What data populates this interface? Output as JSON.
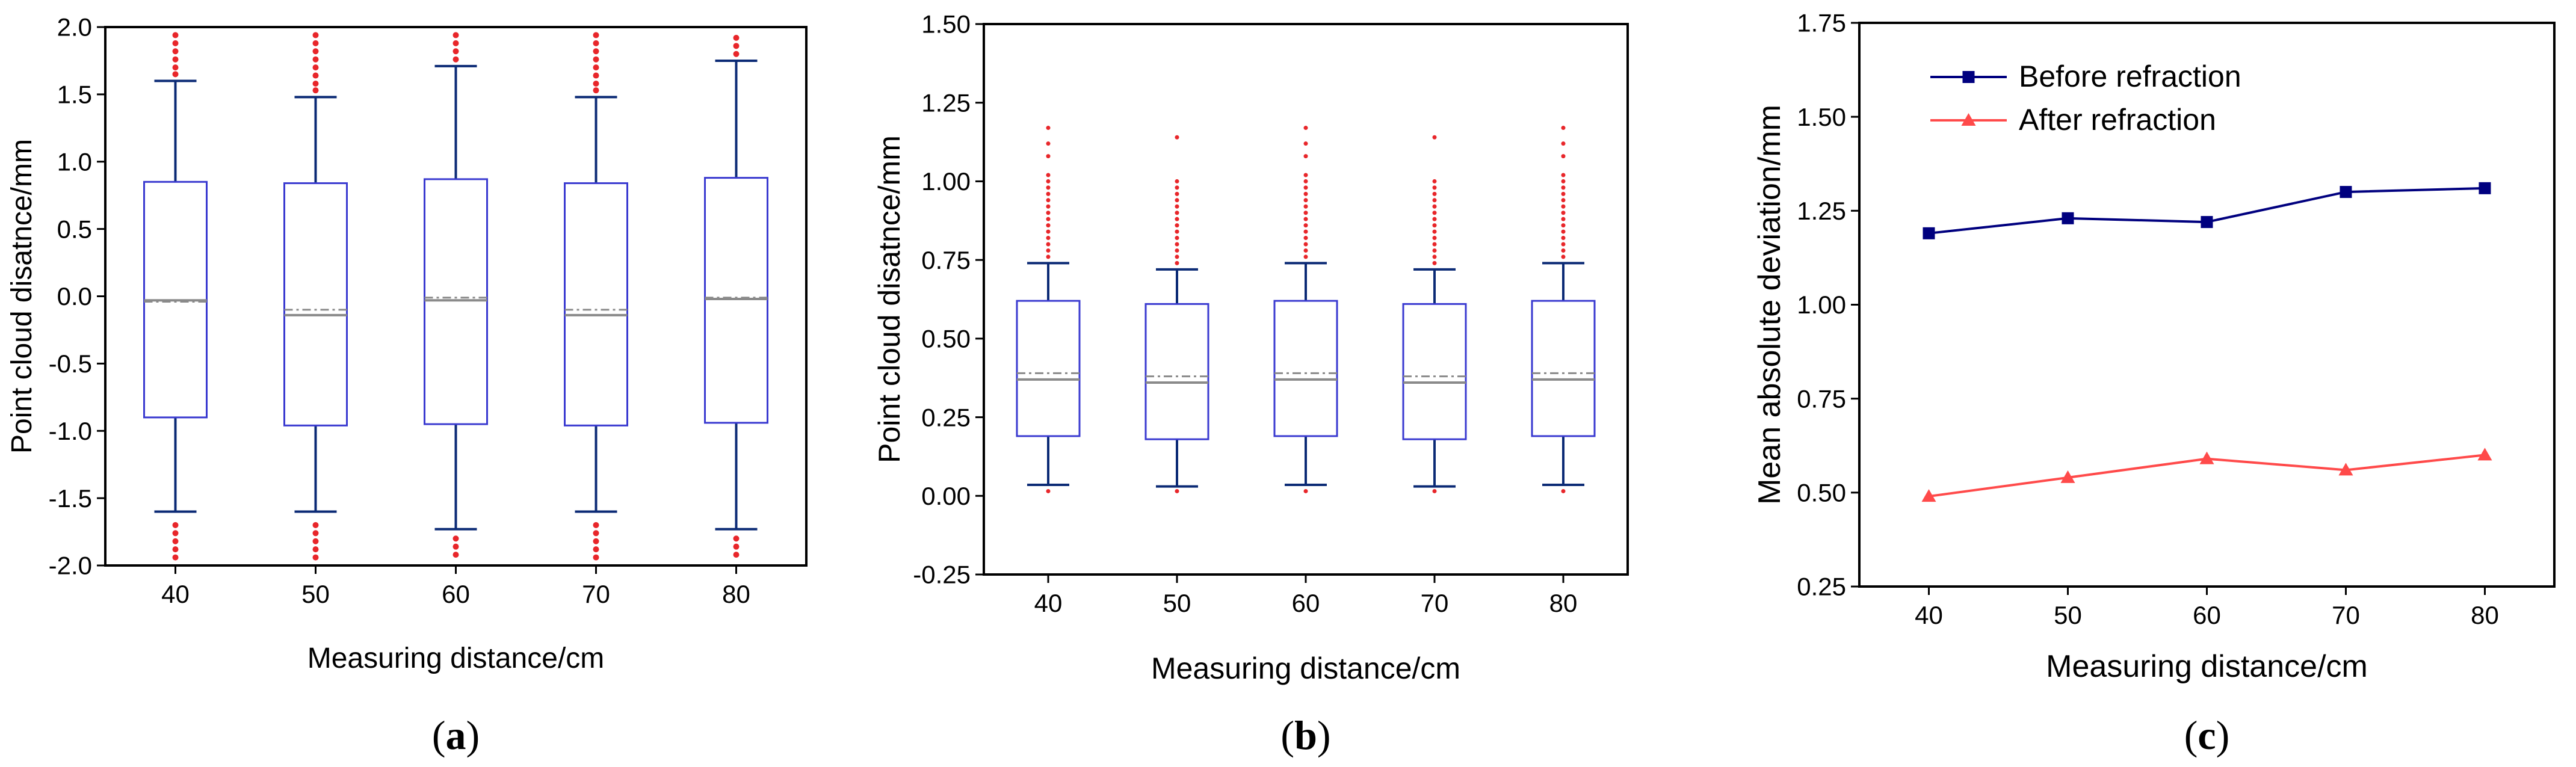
{
  "colors": {
    "box": "#3a3ad0",
    "whisker": "#0b2a75",
    "outlier": "#e8262a",
    "median": "#8a8a8a",
    "mean": "#8a8a8a",
    "before": "#00007f",
    "after": "#ff4a4a",
    "axis": "#000000"
  },
  "chart_data": [
    {
      "id": "a",
      "type": "box",
      "caption_open": "(",
      "caption_letter": "a",
      "caption_close": ")",
      "xlabel": "Measuring distance/cm",
      "ylabel": "Point cloud disatnce/mm",
      "categories": [
        "40",
        "50",
        "60",
        "70",
        "80"
      ],
      "ylim": [
        -2.0,
        2.0
      ],
      "yticks": [
        -2.0,
        -1.5,
        -1.0,
        -0.5,
        0.0,
        0.5,
        1.0,
        1.5,
        2.0
      ],
      "ytick_labels": [
        "-2.0",
        "-1.5",
        "-1.0",
        "-0.5",
        "0.0",
        "0.5",
        "1.0",
        "1.5",
        "2.0"
      ],
      "boxes": [
        {
          "q1": -0.9,
          "median": -0.03,
          "mean": -0.04,
          "q3": 0.85,
          "whisker_low": -1.6,
          "whisker_high": 1.6,
          "out_low": [
            -1.7,
            -1.76,
            -1.82,
            -1.88,
            -1.94
          ],
          "out_high": [
            1.65,
            1.7,
            1.76,
            1.82,
            1.88,
            1.94
          ]
        },
        {
          "q1": -0.96,
          "median": -0.14,
          "mean": -0.1,
          "q3": 0.84,
          "whisker_low": -1.6,
          "whisker_high": 1.48,
          "out_low": [
            -1.7,
            -1.76,
            -1.82,
            -1.88,
            -1.94
          ],
          "out_high": [
            1.53,
            1.58,
            1.64,
            1.7,
            1.76,
            1.82,
            1.88,
            1.94
          ]
        },
        {
          "q1": -0.95,
          "median": -0.03,
          "mean": -0.01,
          "q3": 0.87,
          "whisker_low": -1.73,
          "whisker_high": 1.71,
          "out_low": [
            -1.8,
            -1.86,
            -1.92
          ],
          "out_high": [
            1.76,
            1.82,
            1.88,
            1.94
          ]
        },
        {
          "q1": -0.96,
          "median": -0.14,
          "mean": -0.1,
          "q3": 0.84,
          "whisker_low": -1.6,
          "whisker_high": 1.48,
          "out_low": [
            -1.7,
            -1.76,
            -1.82,
            -1.88,
            -1.94
          ],
          "out_high": [
            1.53,
            1.58,
            1.64,
            1.7,
            1.76,
            1.82,
            1.88,
            1.94
          ]
        },
        {
          "q1": -0.94,
          "median": -0.02,
          "mean": -0.01,
          "q3": 0.88,
          "whisker_low": -1.73,
          "whisker_high": 1.75,
          "out_low": [
            -1.8,
            -1.86,
            -1.92
          ],
          "out_high": [
            1.8,
            1.86,
            1.92
          ]
        }
      ]
    },
    {
      "id": "b",
      "type": "box",
      "caption_open": "(",
      "caption_letter": "b",
      "caption_close": ")",
      "xlabel": "Measuring distance/cm",
      "ylabel": "Point cloud disatnce/mm",
      "categories": [
        "40",
        "50",
        "60",
        "70",
        "80"
      ],
      "ylim": [
        -0.25,
        1.5
      ],
      "yticks": [
        -0.25,
        0.0,
        0.25,
        0.5,
        0.75,
        1.0,
        1.25,
        1.5
      ],
      "ytick_labels": [
        "-0.25",
        "0.00",
        "0.25",
        "0.50",
        "0.75",
        "1.00",
        "1.25",
        "1.50"
      ],
      "boxes": [
        {
          "q1": 0.19,
          "median": 0.37,
          "mean": 0.39,
          "q3": 0.62,
          "whisker_low": 0.035,
          "whisker_high": 0.74,
          "out_low": [
            0.015
          ],
          "out_high": [
            0.76,
            0.78,
            0.8,
            0.82,
            0.84,
            0.86,
            0.88,
            0.9,
            0.92,
            0.94,
            0.96,
            0.98,
            1.0,
            1.02,
            1.08,
            1.12,
            1.17
          ]
        },
        {
          "q1": 0.18,
          "median": 0.36,
          "mean": 0.38,
          "q3": 0.61,
          "whisker_low": 0.03,
          "whisker_high": 0.72,
          "out_low": [
            0.015
          ],
          "out_high": [
            0.74,
            0.76,
            0.78,
            0.8,
            0.82,
            0.84,
            0.86,
            0.88,
            0.9,
            0.92,
            0.94,
            0.96,
            0.98,
            1.0,
            1.14
          ]
        },
        {
          "q1": 0.19,
          "median": 0.37,
          "mean": 0.39,
          "q3": 0.62,
          "whisker_low": 0.035,
          "whisker_high": 0.74,
          "out_low": [
            0.015
          ],
          "out_high": [
            0.76,
            0.78,
            0.8,
            0.82,
            0.84,
            0.86,
            0.88,
            0.9,
            0.92,
            0.94,
            0.96,
            0.98,
            1.0,
            1.02,
            1.08,
            1.12,
            1.17
          ]
        },
        {
          "q1": 0.18,
          "median": 0.36,
          "mean": 0.38,
          "q3": 0.61,
          "whisker_low": 0.03,
          "whisker_high": 0.72,
          "out_low": [
            0.015
          ],
          "out_high": [
            0.74,
            0.76,
            0.78,
            0.8,
            0.82,
            0.84,
            0.86,
            0.88,
            0.9,
            0.92,
            0.94,
            0.96,
            0.98,
            1.0,
            1.14
          ]
        },
        {
          "q1": 0.19,
          "median": 0.37,
          "mean": 0.39,
          "q3": 0.62,
          "whisker_low": 0.035,
          "whisker_high": 0.74,
          "out_low": [
            0.015
          ],
          "out_high": [
            0.76,
            0.78,
            0.8,
            0.82,
            0.84,
            0.86,
            0.88,
            0.9,
            0.92,
            0.94,
            0.96,
            0.98,
            1.0,
            1.02,
            1.08,
            1.12,
            1.17
          ]
        }
      ]
    },
    {
      "id": "c",
      "type": "line",
      "caption_open": "(",
      "caption_letter": "c",
      "caption_close": ")",
      "xlabel": "Measuring distance/cm",
      "ylabel": "Mean absolute deviation/mm",
      "x": [
        40,
        50,
        60,
        70,
        80
      ],
      "xticks": [
        40,
        50,
        60,
        70,
        80
      ],
      "xtick_labels": [
        "40",
        "50",
        "60",
        "70",
        "80"
      ],
      "xlim": [
        35,
        85
      ],
      "ylim": [
        0.25,
        1.75
      ],
      "yticks": [
        0.25,
        0.5,
        0.75,
        1.0,
        1.25,
        1.5,
        1.75
      ],
      "ytick_labels": [
        "0.25",
        "0.50",
        "0.75",
        "1.00",
        "1.25",
        "1.50",
        "1.75"
      ],
      "legend_position": "top-left",
      "series": [
        {
          "name": "Before refraction",
          "marker": "square",
          "values": [
            1.19,
            1.23,
            1.22,
            1.3,
            1.31
          ]
        },
        {
          "name": "After refraction",
          "marker": "triangle",
          "values": [
            0.49,
            0.54,
            0.59,
            0.56,
            0.6
          ]
        }
      ]
    }
  ]
}
